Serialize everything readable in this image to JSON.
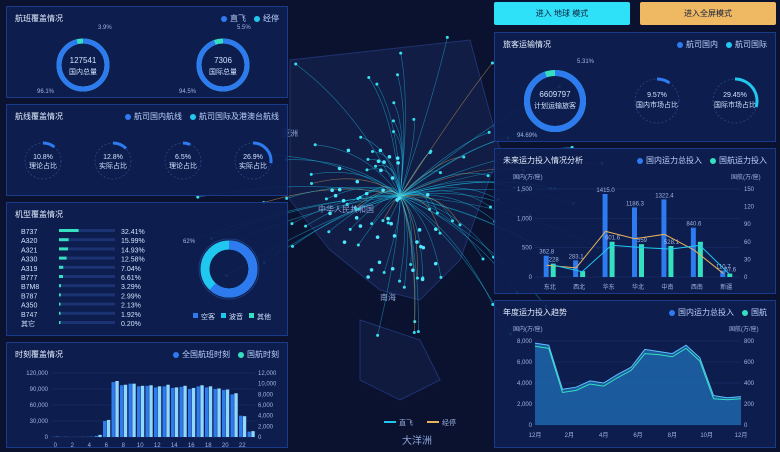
{
  "colors": {
    "accent_blue": "#2e7bf0",
    "cyan": "#20c8f0",
    "teal": "#35e0c0",
    "gold": "#e8b35a"
  },
  "buttons": {
    "globe_mode": "进入 地球 模式",
    "full_screen_mode": "进入全屏模式"
  },
  "route_coverage": {
    "title": "航班覆盖情况",
    "legend": [
      "直飞",
      "经停"
    ],
    "domestic": {
      "value": "127541",
      "label": "国内总量",
      "top_pct": "3.9%",
      "bottom_pct": "96.1%",
      "fraction": 0.961
    },
    "international": {
      "value": "7306",
      "label": "国际总量",
      "top_pct": "5.5%",
      "bottom_pct": "94.5%",
      "fraction": 0.945
    }
  },
  "line_coverage": {
    "title": "航线覆盖情况",
    "legend": [
      "航司国内航线",
      "航司国际及港澳台航线"
    ],
    "gauges": [
      {
        "value": "10.8%",
        "label": "理论占比",
        "fraction": 0.108
      },
      {
        "value": "12.8%",
        "label": "实际占比",
        "fraction": 0.128
      },
      {
        "value": "6.5%",
        "label": "理论占比",
        "fraction": 0.065
      },
      {
        "value": "26.9%",
        "label": "实际占比",
        "fraction": 0.269
      }
    ]
  },
  "aircraft_coverage": {
    "title": "机型覆盖情况",
    "rows": [
      {
        "name": "B737",
        "pct": "32.41%",
        "fraction": 0.3241
      },
      {
        "name": "A320",
        "pct": "15.99%",
        "fraction": 0.1599
      },
      {
        "name": "A321",
        "pct": "14.93%",
        "fraction": 0.1493
      },
      {
        "name": "A330",
        "pct": "12.58%",
        "fraction": 0.1258
      },
      {
        "name": "A319",
        "pct": "7.04%",
        "fraction": 0.0704
      },
      {
        "name": "B777",
        "pct": "6.61%",
        "fraction": 0.0661
      },
      {
        "name": "B7M8",
        "pct": "3.29%",
        "fraction": 0.0329
      },
      {
        "name": "B787",
        "pct": "2.99%",
        "fraction": 0.0299
      },
      {
        "name": "A350",
        "pct": "2.13%",
        "fraction": 0.0213
      },
      {
        "name": "B747",
        "pct": "1.92%",
        "fraction": 0.0192
      },
      {
        "name": "其它",
        "pct": "0.20%",
        "fraction": 0.002
      }
    ],
    "donut_label": "62%",
    "legend": [
      "空客",
      "波音",
      "其他"
    ]
  },
  "hourly_coverage": {
    "title": "时刻覆盖情况",
    "legend": [
      "全国航班时刻",
      "国航时刻"
    ],
    "chart_data": {
      "type": "bar",
      "x_ticks": [
        "0",
        "2",
        "4",
        "6",
        "8",
        "10",
        "12",
        "14",
        "16",
        "18",
        "20",
        "22"
      ],
      "left_ticks": [
        "120,000",
        "90,000",
        "60,000",
        "30,000",
        "0"
      ],
      "right_ticks": [
        "12,000",
        "10,000",
        "8,000",
        "6,000",
        "4,000",
        "2,000",
        "0"
      ],
      "national_values": [
        300,
        200,
        100,
        200,
        300,
        2000,
        30000,
        103000,
        97000,
        100000,
        95000,
        96000,
        93000,
        95000,
        92000,
        94000,
        90000,
        95000,
        93000,
        90000,
        88000,
        80000,
        40000,
        10000
      ],
      "airline_values": [
        40,
        20,
        10,
        20,
        30,
        400,
        3200,
        10500,
        9800,
        10000,
        9600,
        9700,
        9500,
        9800,
        9300,
        9600,
        9200,
        9700,
        9500,
        9100,
        8900,
        8200,
        3900,
        1100
      ],
      "ylim_left": [
        0,
        120000
      ],
      "ylim_right": [
        0,
        12000
      ]
    }
  },
  "passenger_transport": {
    "title": "旅客运输情况",
    "legend": [
      "航司国内",
      "航司国际"
    ],
    "main": {
      "value": "6609797",
      "label": "计划运输旅客",
      "top_pct": "5.31%",
      "bottom_pct": "94.69%",
      "fraction": 0.9469
    },
    "domestic_share": {
      "value": "9.57%",
      "label": "国内市场占比",
      "fraction": 0.0957
    },
    "international_share": {
      "value": "29.45%",
      "label": "国际市场占比",
      "fraction": 0.2945
    }
  },
  "capacity_analysis": {
    "title": "未来运力投入情况分析",
    "legend": [
      "国内运力总投入",
      "国航运力投入"
    ],
    "left_unit": "国内(万/座)",
    "right_unit": "国航(万/座)",
    "chart_data": {
      "type": "bar",
      "categories": [
        "东北",
        "西北",
        "华东",
        "华北",
        "中南",
        "西南",
        "新疆"
      ],
      "left_ticks": [
        "1,500",
        "1,000",
        "500",
        "0"
      ],
      "right_ticks": [
        "150",
        "120",
        "90",
        "60",
        "30",
        "0"
      ],
      "domestic": [
        362.8,
        283.1,
        1415.0,
        1186.3,
        1322.4,
        840.6,
        110.7
      ],
      "airline": [
        228,
        100,
        601.6,
        559,
        528.1,
        600,
        57.6
      ],
      "labels_domestic": [
        "362.8",
        "283.1",
        "1415.0",
        "1186.3",
        "1322.4",
        "840.6",
        "110.7"
      ],
      "labels_airline": [
        "228",
        "",
        "601.6",
        "559",
        "528.1",
        "",
        "57.6"
      ],
      "ylim_left": [
        0,
        1500
      ]
    }
  },
  "annual_trend": {
    "title": "年度运力投入趋势",
    "legend": [
      "国内运力总投入",
      "国航"
    ],
    "left_unit": "国内(万/座)",
    "right_unit": "国航(万/座)",
    "chart_data": {
      "type": "area",
      "x_ticks": [
        "12月",
        "2月",
        "4月",
        "6月",
        "8月",
        "10月",
        "12月"
      ],
      "left_ticks": [
        "8,000",
        "6,000",
        "4,000",
        "2,000",
        "0"
      ],
      "right_ticks": [
        "800",
        "600",
        "400",
        "200",
        "0"
      ],
      "domestic": [
        7800,
        7600,
        3400,
        3600,
        4200,
        4000,
        4800,
        5500,
        7200,
        7000,
        6800,
        7600,
        6400,
        2800,
        2600,
        2700
      ],
      "airline": [
        7500,
        7300,
        3100,
        3300,
        3900,
        3700,
        4500,
        5200,
        6800,
        6700,
        6500,
        7300,
        6100,
        2500,
        2400,
        2500
      ],
      "ylim": [
        0,
        8000
      ]
    }
  },
  "map": {
    "labels": [
      "亚洲",
      "中华人民共和国",
      "南海",
      "大洋洲"
    ],
    "legend": [
      "直飞",
      "经停"
    ]
  }
}
